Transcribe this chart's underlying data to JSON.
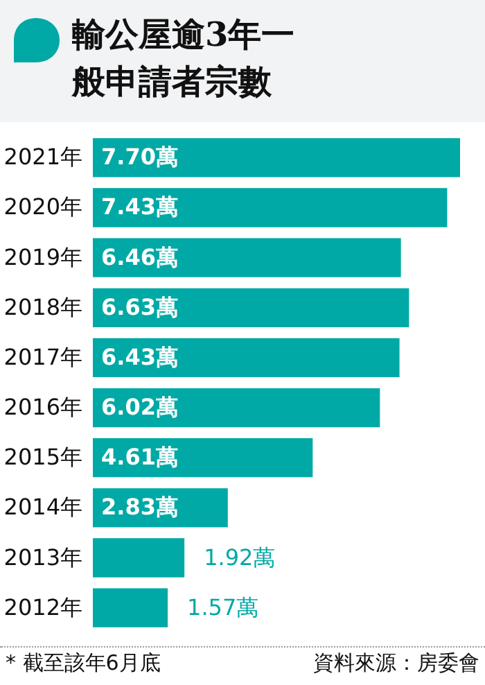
{
  "chart_data": {
    "type": "bar",
    "orientation": "horizontal",
    "title": "輸公屋逾3年一般申請者宗數",
    "categories": [
      "2021年",
      "2020年",
      "2019年",
      "2018年",
      "2017年",
      "2016年",
      "2015年",
      "2014年",
      "2013年",
      "2012年"
    ],
    "values": [
      7.7,
      7.43,
      6.46,
      6.63,
      6.43,
      6.02,
      4.61,
      2.83,
      1.92,
      1.57
    ],
    "value_labels": [
      "7.70萬",
      "7.43萬",
      "6.46萬",
      "6.63萬",
      "6.43萬",
      "6.02萬",
      "4.61萬",
      "2.83萬",
      "1.92萬",
      "1.57萬"
    ],
    "color": "#00a9a5",
    "annotations": [
      "* 截至該年6月底",
      "資料來源：房委會"
    ]
  }
}
